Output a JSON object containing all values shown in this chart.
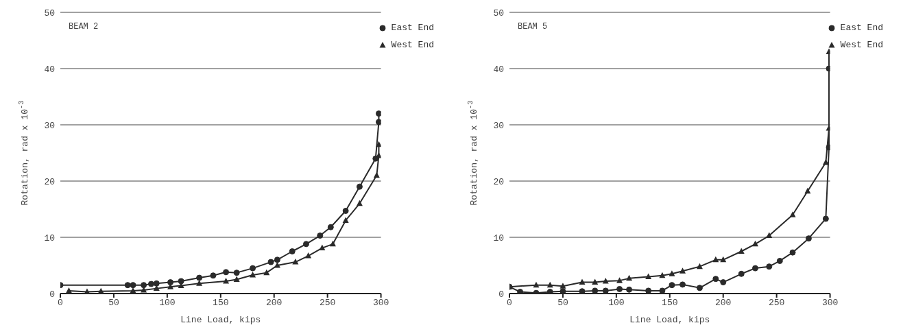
{
  "chart_data": [
    {
      "type": "line",
      "annotations": [
        "BEAM 2"
      ],
      "xlabel": "Line Load, kips",
      "ylabel": "Rotation, rad x 10$^{-3}$",
      "xlim": [
        0,
        300
      ],
      "xticks": [
        0,
        50,
        100,
        150,
        200,
        250,
        300
      ],
      "ylim": [
        0,
        50
      ],
      "yticks": [
        0,
        10,
        20,
        30,
        40,
        50
      ],
      "grid": "y",
      "legend": "top right",
      "line_style": "solid",
      "series": [
        {
          "name": "East End",
          "color": "#2a2a2a",
          "marker": "circle",
          "x": [
            0,
            63,
            68,
            78,
            85,
            90,
            103,
            113,
            130,
            143,
            155,
            165,
            180,
            197,
            203,
            217,
            230,
            243,
            253,
            267,
            280,
            295,
            298,
            298
          ],
          "values": [
            1.5,
            1.5,
            1.5,
            1.5,
            1.7,
            1.8,
            2,
            2.2,
            2.8,
            3.2,
            3.8,
            3.7,
            4.5,
            5.6,
            6,
            7.5,
            8.8,
            10.3,
            11.8,
            14.7,
            19,
            24,
            30.5,
            32
          ]
        },
        {
          "name": "West End",
          "color": "#2a2a2a",
          "marker": "triangle",
          "x": [
            8,
            25,
            38,
            68,
            78,
            90,
            103,
            113,
            130,
            155,
            165,
            180,
            193,
            203,
            220,
            232,
            245,
            255,
            267,
            280,
            296,
            298,
            298
          ],
          "values": [
            0.5,
            0.3,
            0.4,
            0.5,
            0.6,
            0.9,
            1.2,
            1.4,
            1.8,
            2.2,
            2.5,
            3.3,
            3.7,
            5,
            5.6,
            6.7,
            8.1,
            8.8,
            13,
            16,
            21,
            24.5,
            26.5
          ]
        }
      ]
    },
    {
      "type": "line",
      "annotations": [
        "BEAM 5"
      ],
      "xlabel": "Line Load, kips",
      "ylabel": "Rotation, rad x 10$^{-3}$",
      "xlim": [
        0,
        300
      ],
      "xticks": [
        0,
        50,
        100,
        150,
        200,
        250,
        300
      ],
      "ylim": [
        0,
        50
      ],
      "yticks": [
        0,
        10,
        20,
        30,
        40,
        50
      ],
      "grid": "y",
      "legend": "top right",
      "line_style": "solid",
      "series": [
        {
          "name": "East End",
          "color": "#2a2a2a",
          "marker": "circle",
          "x": [
            0,
            10,
            25,
            38,
            50,
            68,
            80,
            90,
            103,
            112,
            130,
            143,
            152,
            162,
            178,
            193,
            200,
            217,
            230,
            243,
            253,
            265,
            280,
            296,
            299,
            299
          ],
          "values": [
            1.2,
            0.3,
            0.1,
            0.3,
            0.4,
            0.4,
            0.5,
            0.5,
            0.8,
            0.7,
            0.5,
            0.5,
            1.5,
            1.6,
            1,
            2.6,
            2,
            3.5,
            4.5,
            4.8,
            5.8,
            7.3,
            9.8,
            13.3,
            26,
            40
          ]
        },
        {
          "name": "West End",
          "color": "#2a2a2a",
          "marker": "triangle",
          "x": [
            0,
            25,
            38,
            50,
            68,
            80,
            90,
            103,
            112,
            130,
            143,
            152,
            162,
            178,
            193,
            200,
            217,
            230,
            243,
            265,
            279,
            296,
            299,
            299
          ],
          "values": [
            1.2,
            1.5,
            1.5,
            1.3,
            2,
            2,
            2.2,
            2.3,
            2.7,
            3,
            3.2,
            3.5,
            4,
            4.8,
            6,
            6,
            7.5,
            8.8,
            10.3,
            14,
            18.2,
            23.3,
            29.4,
            43
          ]
        }
      ]
    }
  ]
}
